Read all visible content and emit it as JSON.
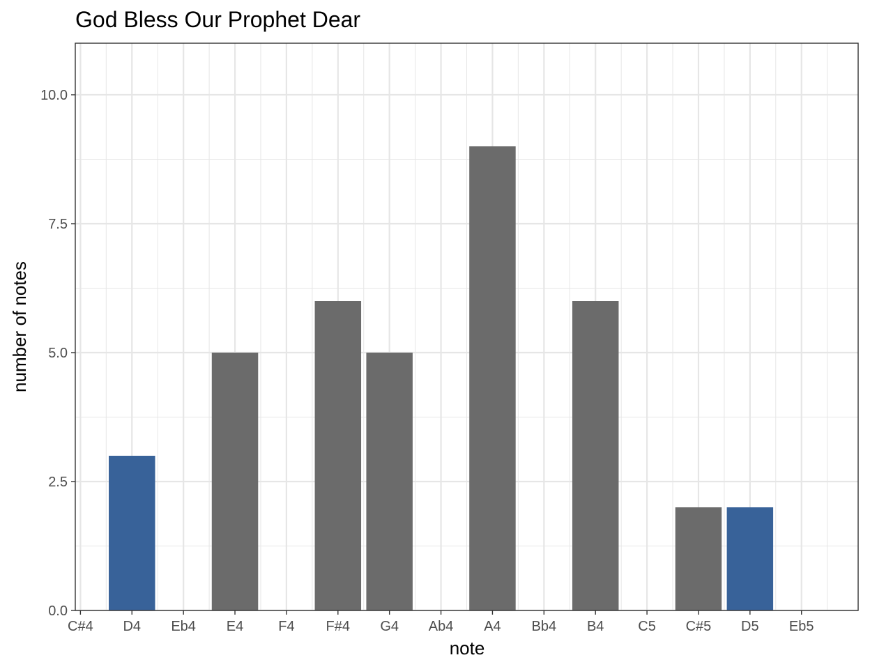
{
  "chart_data": {
    "type": "bar",
    "title": "God Bless Our Prophet Dear",
    "xlabel": "note",
    "ylabel": "number of notes",
    "categories": [
      "C#4",
      "D4",
      "Eb4",
      "E4",
      "F4",
      "F#4",
      "G4",
      "Ab4",
      "A4",
      "Bb4",
      "B4",
      "C5",
      "C#5",
      "D5",
      "Eb5"
    ],
    "values": [
      0,
      3,
      0,
      5,
      0,
      6,
      5,
      0,
      9,
      0,
      6,
      0,
      2,
      2,
      0
    ],
    "highlighted": [
      "D4",
      "D5"
    ],
    "ylim": [
      0,
      11
    ],
    "yticks": [
      0,
      2.5,
      5,
      7.5,
      10
    ],
    "ytick_labels": [
      "0.0",
      "2.5",
      "5.0",
      "7.5",
      "10.0"
    ],
    "grid": true,
    "colors": {
      "bar": "#6b6b6b",
      "highlight": "#386299",
      "grid": "#e6e6e6",
      "border": "#333333"
    }
  }
}
